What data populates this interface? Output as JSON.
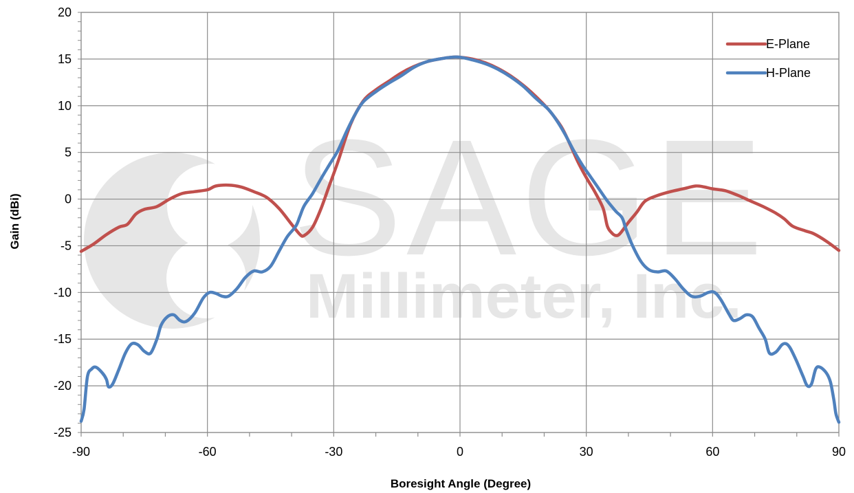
{
  "watermark": {
    "line1": "SAGE",
    "line2": "Millimeter, Inc."
  },
  "chart_data": {
    "type": "line",
    "title": "",
    "xlabel": "Boresight Angle (Degree)",
    "ylabel": "Gain (dBi)",
    "xlim": [
      -90,
      90
    ],
    "ylim": [
      -25,
      20
    ],
    "xticks": [
      -90,
      -60,
      -30,
      0,
      30,
      60,
      90
    ],
    "yticks": [
      -25,
      -20,
      -15,
      -10,
      -5,
      0,
      5,
      10,
      15,
      20
    ],
    "grid": true,
    "legend_position": "top-right",
    "series": [
      {
        "name": "E-Plane",
        "color": "#c0504d",
        "points": [
          [
            -90,
            -5.6
          ],
          [
            -87,
            -4.8
          ],
          [
            -84,
            -3.8
          ],
          [
            -81,
            -3
          ],
          [
            -79,
            -2.7
          ],
          [
            -77,
            -1.6
          ],
          [
            -75,
            -1.1
          ],
          [
            -72,
            -0.8
          ],
          [
            -69,
            0
          ],
          [
            -66,
            0.6
          ],
          [
            -63,
            0.8
          ],
          [
            -60,
            1
          ],
          [
            -58,
            1.4
          ],
          [
            -55,
            1.5
          ],
          [
            -52,
            1.3
          ],
          [
            -49,
            0.8
          ],
          [
            -46,
            0.2
          ],
          [
            -43,
            -1
          ],
          [
            -40,
            -2.7
          ],
          [
            -38,
            -3.8
          ],
          [
            -37,
            -3.9
          ],
          [
            -35,
            -3
          ],
          [
            -33,
            -1
          ],
          [
            -31,
            1.5
          ],
          [
            -29,
            4
          ],
          [
            -26,
            8
          ],
          [
            -23,
            10.5
          ],
          [
            -20,
            11.7
          ],
          [
            -17,
            12.6
          ],
          [
            -14,
            13.5
          ],
          [
            -11,
            14.2
          ],
          [
            -8,
            14.7
          ],
          [
            -5,
            15
          ],
          [
            -2,
            15.2
          ],
          [
            0,
            15.2
          ],
          [
            3,
            15
          ],
          [
            6,
            14.6
          ],
          [
            9,
            14
          ],
          [
            12,
            13.2
          ],
          [
            15,
            12.2
          ],
          [
            18,
            11
          ],
          [
            21,
            9.6
          ],
          [
            24,
            7.8
          ],
          [
            26,
            6
          ],
          [
            28,
            4
          ],
          [
            30,
            2.3
          ],
          [
            32,
            0.8
          ],
          [
            34,
            -1
          ],
          [
            35,
            -2.9
          ],
          [
            36,
            -3.6
          ],
          [
            37,
            -3.9
          ],
          [
            38,
            -3.7
          ],
          [
            40,
            -2.5
          ],
          [
            42,
            -1.4
          ],
          [
            44,
            -0.2
          ],
          [
            47,
            0.4
          ],
          [
            50,
            0.8
          ],
          [
            53,
            1.1
          ],
          [
            56,
            1.4
          ],
          [
            58,
            1.3
          ],
          [
            60,
            1.1
          ],
          [
            63,
            0.9
          ],
          [
            66,
            0.4
          ],
          [
            69,
            -0.2
          ],
          [
            72,
            -0.8
          ],
          [
            75,
            -1.5
          ],
          [
            77,
            -2.1
          ],
          [
            79,
            -2.9
          ],
          [
            82,
            -3.4
          ],
          [
            84,
            -3.7
          ],
          [
            87,
            -4.5
          ],
          [
            90,
            -5.5
          ]
        ]
      },
      {
        "name": "H-Plane",
        "color": "#4f81bd",
        "points": [
          [
            -90,
            -23.8
          ],
          [
            -89.3,
            -22.5
          ],
          [
            -88.5,
            -19
          ],
          [
            -87.5,
            -18.2
          ],
          [
            -86.5,
            -18
          ],
          [
            -85,
            -18.6
          ],
          [
            -84,
            -19.3
          ],
          [
            -83.5,
            -20.1
          ],
          [
            -82.5,
            -19.8
          ],
          [
            -81,
            -18.2
          ],
          [
            -79.5,
            -16.5
          ],
          [
            -78,
            -15.5
          ],
          [
            -76.5,
            -15.6
          ],
          [
            -75,
            -16.3
          ],
          [
            -73.5,
            -16.5
          ],
          [
            -72,
            -15
          ],
          [
            -71,
            -13.5
          ],
          [
            -69.5,
            -12.6
          ],
          [
            -68,
            -12.4
          ],
          [
            -66.5,
            -13
          ],
          [
            -65,
            -13.1
          ],
          [
            -63,
            -12.2
          ],
          [
            -61,
            -10.6
          ],
          [
            -59.5,
            -10
          ],
          [
            -58,
            -10.1
          ],
          [
            -56.5,
            -10.4
          ],
          [
            -55,
            -10.4
          ],
          [
            -53,
            -9.6
          ],
          [
            -51,
            -8.4
          ],
          [
            -49,
            -7.7
          ],
          [
            -47,
            -7.8
          ],
          [
            -45,
            -7.2
          ],
          [
            -43,
            -5.6
          ],
          [
            -41,
            -4
          ],
          [
            -39,
            -2.9
          ],
          [
            -38,
            -1.8
          ],
          [
            -37,
            -0.7
          ],
          [
            -35,
            0.6
          ],
          [
            -33,
            2.2
          ],
          [
            -31,
            3.7
          ],
          [
            -29,
            5.2
          ],
          [
            -27,
            7.2
          ],
          [
            -25,
            9
          ],
          [
            -23,
            10.4
          ],
          [
            -20,
            11.5
          ],
          [
            -17,
            12.4
          ],
          [
            -14,
            13.2
          ],
          [
            -11,
            14.1
          ],
          [
            -8,
            14.7
          ],
          [
            -5,
            15
          ],
          [
            -2,
            15.2
          ],
          [
            0,
            15.2
          ],
          [
            3,
            14.9
          ],
          [
            6,
            14.5
          ],
          [
            9,
            13.9
          ],
          [
            12,
            13.1
          ],
          [
            15,
            12.1
          ],
          [
            18,
            10.8
          ],
          [
            21,
            9.6
          ],
          [
            23,
            8.4
          ],
          [
            25,
            6.9
          ],
          [
            27,
            5.2
          ],
          [
            29,
            3.7
          ],
          [
            31,
            2.4
          ],
          [
            33,
            1.1
          ],
          [
            35,
            -0.2
          ],
          [
            37,
            -1.3
          ],
          [
            38.5,
            -2
          ],
          [
            39.5,
            -3.3
          ],
          [
            41,
            -5
          ],
          [
            43,
            -6.7
          ],
          [
            45,
            -7.6
          ],
          [
            47,
            -7.8
          ],
          [
            49,
            -7.7
          ],
          [
            51,
            -8.5
          ],
          [
            53,
            -9.6
          ],
          [
            55,
            -10.4
          ],
          [
            57,
            -10.4
          ],
          [
            59,
            -10
          ],
          [
            60.5,
            -10
          ],
          [
            62,
            -10.8
          ],
          [
            64,
            -12.4
          ],
          [
            65,
            -13
          ],
          [
            66.5,
            -12.8
          ],
          [
            68,
            -12.4
          ],
          [
            69.5,
            -12.6
          ],
          [
            71,
            -13.8
          ],
          [
            72.5,
            -15
          ],
          [
            73.5,
            -16.5
          ],
          [
            75,
            -16.4
          ],
          [
            76.5,
            -15.6
          ],
          [
            77.5,
            -15.5
          ],
          [
            78.5,
            -16
          ],
          [
            80,
            -17.4
          ],
          [
            81.5,
            -19
          ],
          [
            82.5,
            -20
          ],
          [
            83.5,
            -19.8
          ],
          [
            84.5,
            -18.2
          ],
          [
            85.5,
            -18
          ],
          [
            87,
            -18.6
          ],
          [
            88,
            -19.6
          ],
          [
            88.8,
            -21.5
          ],
          [
            89.3,
            -23
          ],
          [
            90,
            -23.9
          ]
        ]
      }
    ]
  }
}
